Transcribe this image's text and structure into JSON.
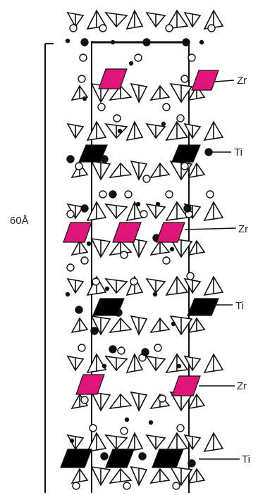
{
  "dimension": {
    "text": "60Å"
  },
  "labels": [
    {
      "key": "zr1",
      "text": "Zr"
    },
    {
      "key": "ti1",
      "text": "Ti"
    },
    {
      "key": "zr2",
      "text": "Zr"
    },
    {
      "key": "ti2",
      "text": "Ti"
    },
    {
      "key": "zr3",
      "text": "Zr"
    },
    {
      "key": "ti3",
      "text": "Ti"
    }
  ],
  "colors": {
    "zr": "#e0157a",
    "ti": "#000000",
    "line": "#111111"
  }
}
